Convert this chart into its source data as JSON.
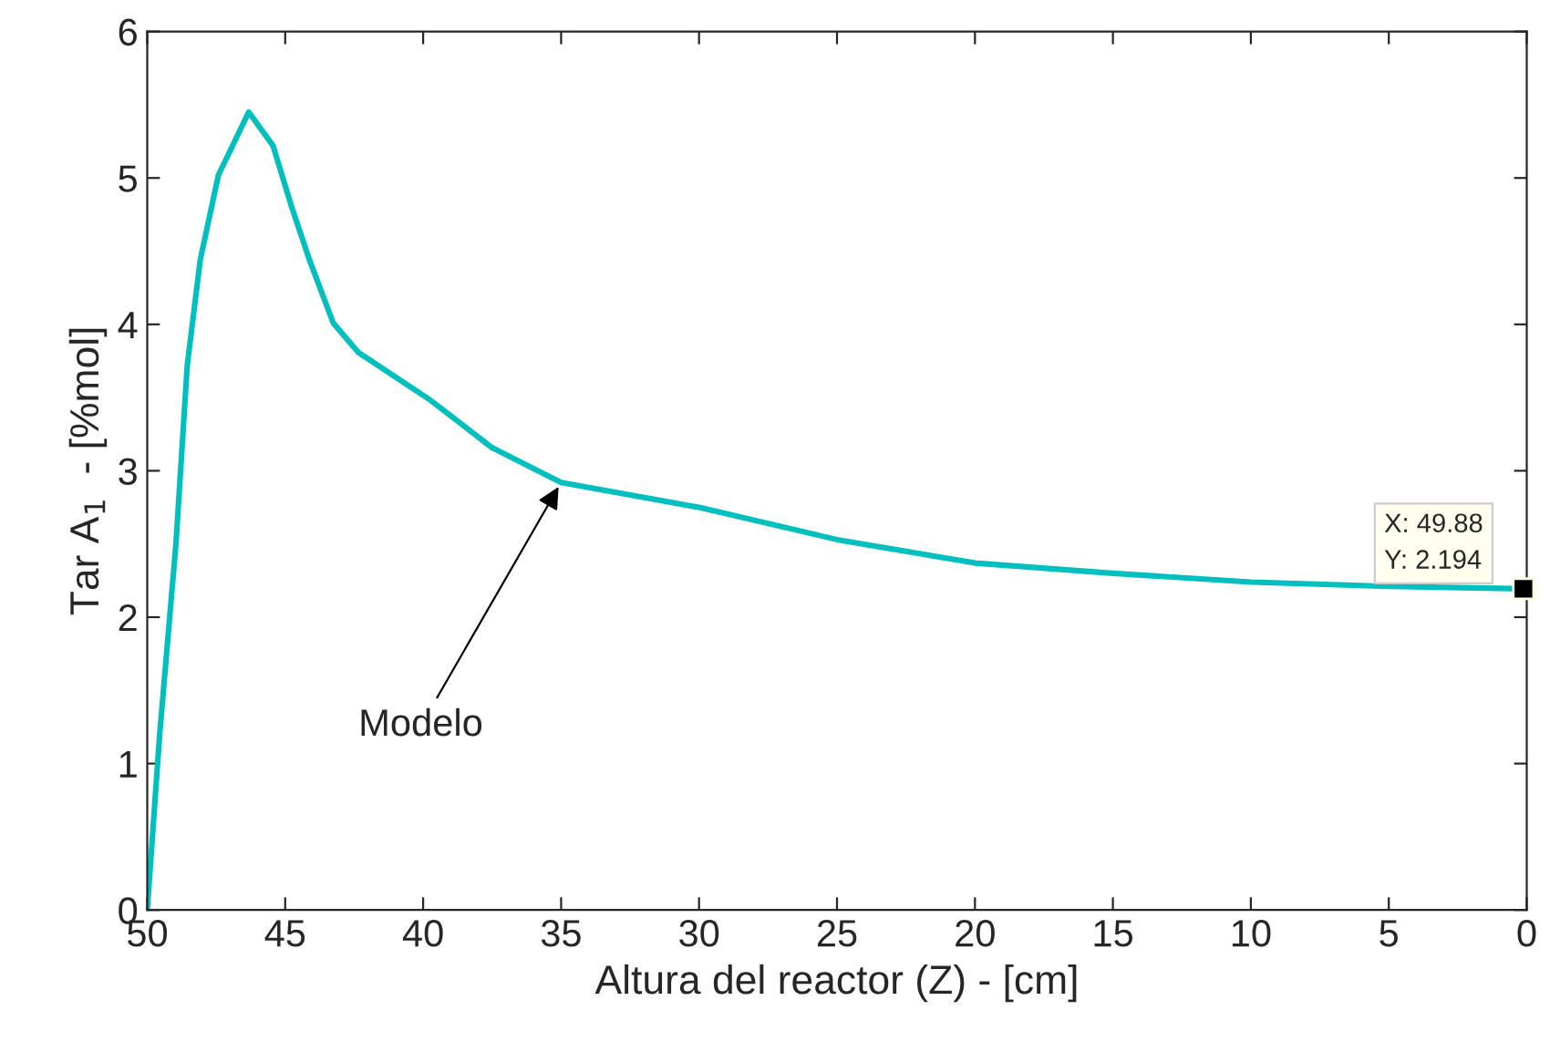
{
  "chart_data": {
    "type": "line",
    "xlabel": "Altura del reactor (Z) - [cm]",
    "ylabel": "Tar A$_{1}$  - [%mol]",
    "x": [
      50,
      49.55,
      48.96,
      48.55,
      48.08,
      47.42,
      46.32,
      45.44,
      44.78,
      44.12,
      43.26,
      42.36,
      39.72,
      37.52,
      35,
      30,
      25,
      20,
      15,
      10,
      5,
      0.12
    ],
    "series": [
      {
        "color": "#00bfbf",
        "values": [
          0,
          1.2,
          2.5,
          3.72,
          4.44,
          5.02,
          5.45,
          5.22,
          4.81,
          4.44,
          4.01,
          3.81,
          3.48,
          3.16,
          2.92,
          2.75,
          2.53,
          2.37,
          2.3,
          2.24,
          2.21,
          2.194
        ]
      }
    ],
    "xlim": [
      50,
      0
    ],
    "xticks": [
      50,
      45,
      40,
      35,
      30,
      25,
      20,
      15,
      10,
      5,
      0
    ],
    "ylim": [
      0,
      6
    ],
    "yticks": [
      0,
      1,
      2,
      3,
      4,
      5,
      6
    ],
    "grid": false,
    "marker": "none",
    "line_style": "solid",
    "annotations": [
      {
        "text": "Modelo",
        "x": 35,
        "y": 2.92
      },
      {
        "text": "X: 49.88\nY: 2.194",
        "x": 0.12,
        "y": 2.194
      }
    ]
  }
}
